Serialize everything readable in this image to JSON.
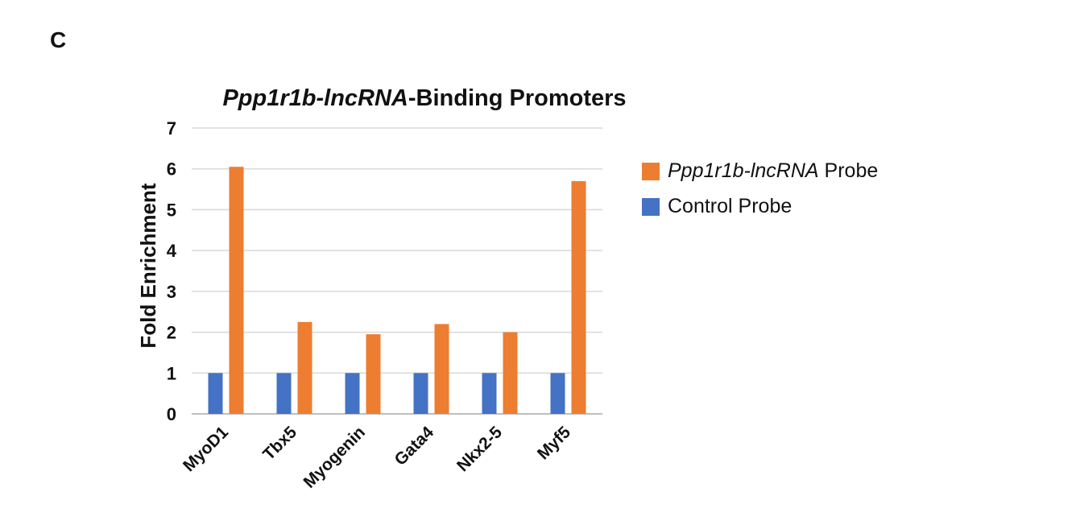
{
  "figure": {
    "panel_label": "C"
  },
  "colors": {
    "probe": "#ED7D31",
    "control": "#4472C4",
    "grid": "#d9d9d9",
    "axis": "#bfbfbf"
  },
  "chart_data": {
    "type": "bar",
    "title_italic": "Ppp1r1b-lncRNA",
    "title_rest": "-Binding  Promoters",
    "ylabel": "Fold Enrichment",
    "xlabel": "",
    "categories": [
      "MyoD1",
      "Tbx5",
      "Myogenin",
      "Gata4",
      "Nkx2-5",
      "Myf5"
    ],
    "ylim": [
      0,
      7
    ],
    "yticks": [
      0,
      1,
      2,
      3,
      4,
      5,
      6,
      7
    ],
    "grid": true,
    "legend_position": "right",
    "series": [
      {
        "name": "Control Probe",
        "color_key": "control",
        "values": [
          1,
          1,
          1,
          1,
          1,
          1
        ]
      },
      {
        "name_italic": "Ppp1r1b-lncRNA",
        "name_rest": " Probe",
        "color_key": "probe",
        "values": [
          6.05,
          2.25,
          1.95,
          2.2,
          2.0,
          5.7
        ]
      }
    ]
  }
}
